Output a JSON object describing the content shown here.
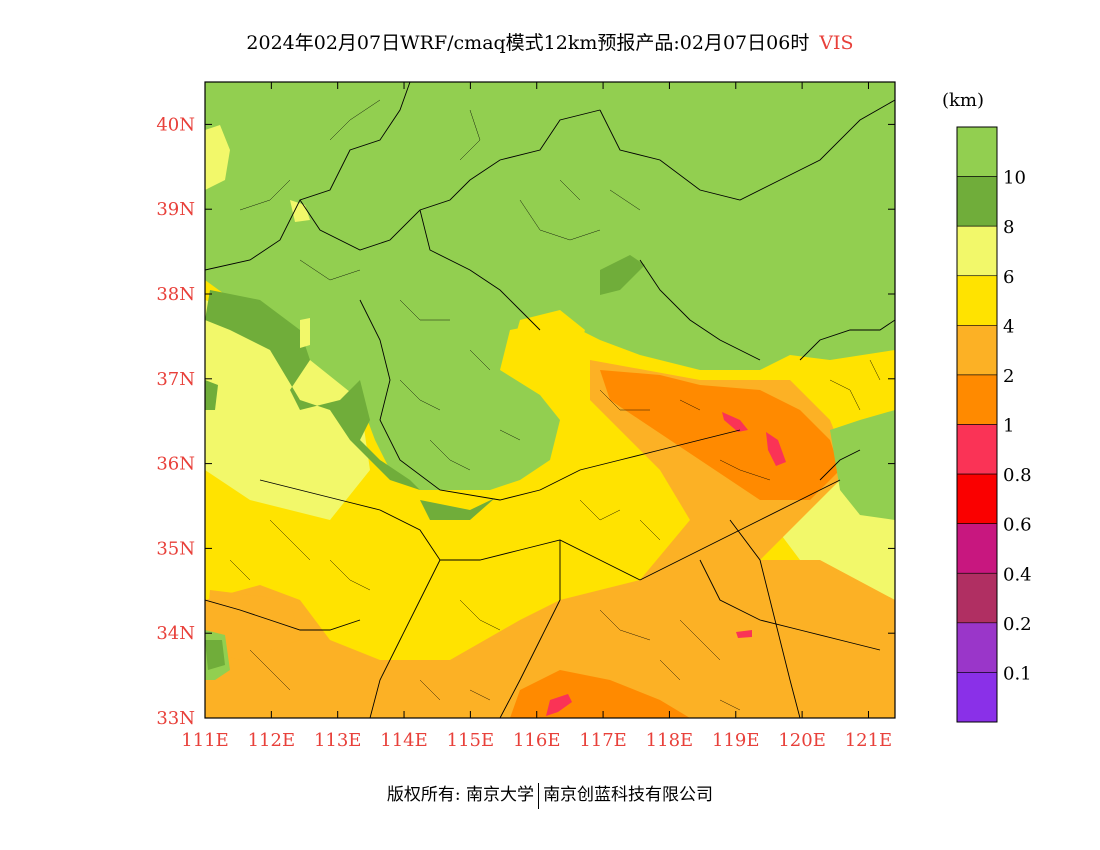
{
  "header": {
    "title": "2024年02月07日WRF/cmaq模式12km预报产品:02月07日06时",
    "variable": "VIS"
  },
  "map": {
    "lon_range": [
      111,
      121.4
    ],
    "lat_range": [
      33,
      40.5
    ],
    "lon_ticks": [
      "111E",
      "112E",
      "113E",
      "114E",
      "115E",
      "116E",
      "117E",
      "118E",
      "119E",
      "120E",
      "121E"
    ],
    "lat_ticks": [
      "33N",
      "34N",
      "35N",
      "36N",
      "37N",
      "38N",
      "39N",
      "40N"
    ],
    "tick_color": "#e8403a",
    "stations": []
  },
  "legend": {
    "unit": "(km)",
    "levels": [
      {
        "label": "10",
        "color": "#92cf50"
      },
      {
        "label": "8",
        "color": "#70ad3a"
      },
      {
        "label": "6",
        "color": "#f2f86a"
      },
      {
        "label": "4",
        "color": "#ffe300"
      },
      {
        "label": "2",
        "color": "#fcb125"
      },
      {
        "label": "1",
        "color": "#ff8a00"
      },
      {
        "label": "0.8",
        "color": "#fa3356"
      },
      {
        "label": "0.6",
        "color": "#fa0000"
      },
      {
        "label": "0.4",
        "color": "#c8177f"
      },
      {
        "label": "0.2",
        "color": "#b02f62"
      },
      {
        "label": "0.1",
        "color": "#9a36c9"
      },
      {
        "label": "",
        "color": "#8a30e8"
      }
    ]
  },
  "footer": {
    "left": "版权所有: 南京大学",
    "right": "南京创蓝科技有限公司"
  }
}
